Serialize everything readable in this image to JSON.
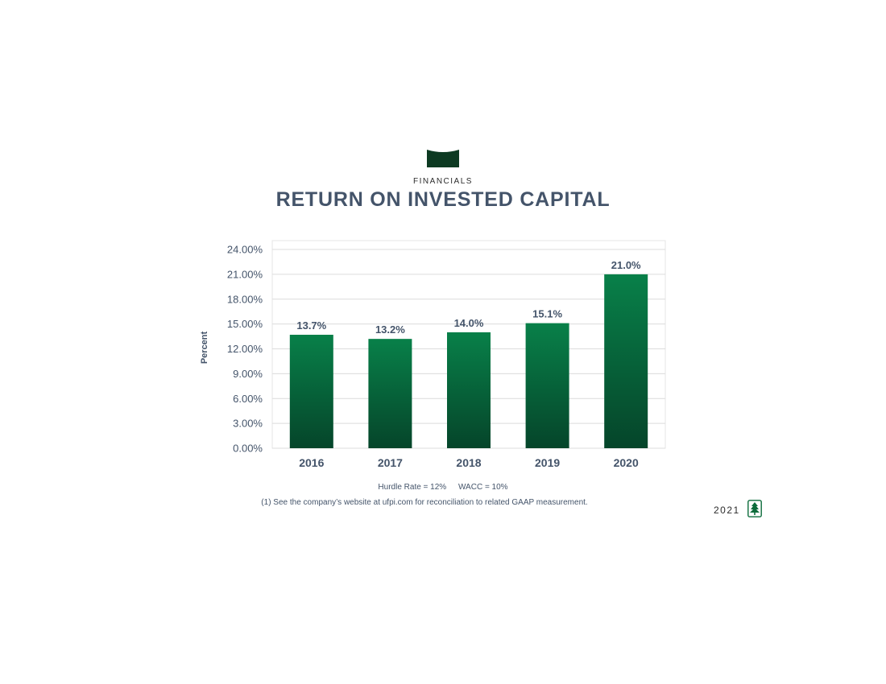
{
  "header": {
    "section": "FINANCIALS",
    "title": "RETURN ON INVESTED CAPITAL"
  },
  "colors": {
    "bar_top": "#088049",
    "bar_bottom": "#05452a",
    "banner": "#0d3a22",
    "text": "#44546a",
    "grid": "#dcdcdc"
  },
  "chart_data": {
    "type": "bar",
    "categories": [
      "2016",
      "2017",
      "2018",
      "2019",
      "2020"
    ],
    "values": [
      13.7,
      13.2,
      14.0,
      15.1,
      21.0
    ],
    "data_labels": [
      "13.7%",
      "13.2%",
      "14.0%",
      "15.1%",
      "21.0%"
    ],
    "title": "RETURN ON INVESTED CAPITAL",
    "xlabel": "",
    "ylabel": "Percent",
    "ylim": [
      0,
      24
    ],
    "yticks": [
      0,
      3,
      6,
      9,
      12,
      15,
      18,
      21,
      24
    ],
    "ytick_labels": [
      "0.00%",
      "3.00%",
      "6.00%",
      "9.00%",
      "12.00%",
      "15.00%",
      "18.00%",
      "21.00%",
      "24.00%"
    ],
    "grid": true
  },
  "notes": {
    "hurdle": "Hurdle Rate = 12%",
    "wacc": "WACC = 10%",
    "footnote": "(1) See the company’s website at ufpi.com for reconciliation to related GAAP measurement."
  },
  "footer": {
    "year": "2021",
    "logo_icon": "tree-icon"
  }
}
